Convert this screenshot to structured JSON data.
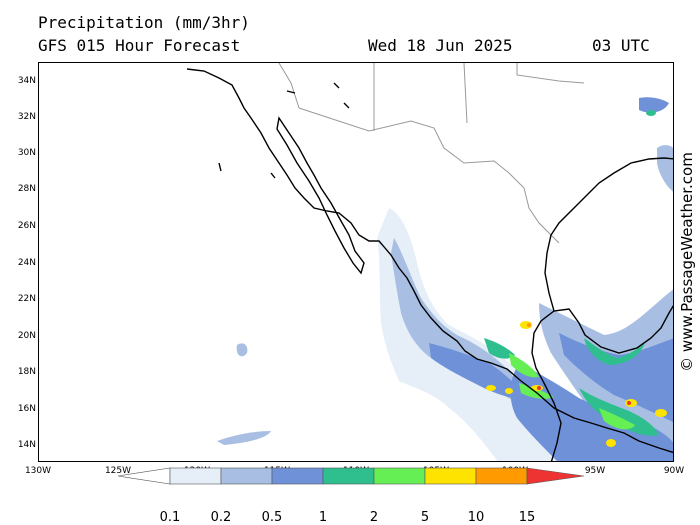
{
  "header": {
    "title": "Precipitation (mm/3hr)",
    "subtitle": "GFS 015 Hour Forecast",
    "date": "Wed 18 Jun 2025",
    "time": "03 UTC"
  },
  "map": {
    "lon_labels": [
      "130W",
      "125W",
      "120W",
      "115W",
      "110W",
      "105W",
      "100W",
      "95W",
      "90W"
    ],
    "lat_labels": [
      "34N",
      "32N",
      "30N",
      "28N",
      "26N",
      "24N",
      "22N",
      "20N",
      "18N",
      "16N",
      "14N"
    ],
    "credit": "© www.PassageWeather.com"
  },
  "legend": {
    "labels": [
      "0.1",
      "0.2",
      "0.5",
      "1",
      "2",
      "5",
      "10",
      "15"
    ],
    "colors": [
      "#ffffff",
      "#e6eef8",
      "#a8bfe3",
      "#6f91d8",
      "#2fbf8f",
      "#66ee55",
      "#ffe300",
      "#ff9a00",
      "#ee3333"
    ]
  },
  "colors": {
    "coast": "#000000",
    "border": "#999999"
  }
}
